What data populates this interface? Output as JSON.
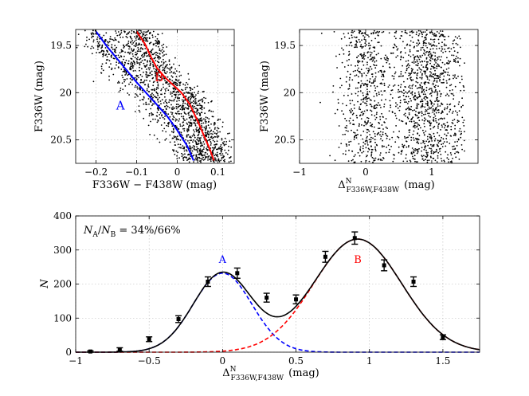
{
  "chart_data": [
    {
      "type": "scatter",
      "panel": "top-left",
      "xlabel": "F336W − F438W  (mag)",
      "ylabel": "F336W  (mag)",
      "xlim": [
        -0.25,
        0.14
      ],
      "ylim": [
        20.75,
        19.33
      ],
      "y_inverted": true,
      "xticks": [
        -0.2,
        -0.1,
        0,
        0.1
      ],
      "xtick_labels": [
        "−0.2",
        "−0.1",
        "0",
        "0.1"
      ],
      "yticks": [
        19.5,
        20,
        20.5
      ],
      "ytick_labels": [
        "19.5",
        "20",
        "20.5"
      ],
      "grid": true,
      "series": [
        {
          "name": "A",
          "color": "#0000ff",
          "x": [
            -0.2,
            -0.175,
            -0.15,
            -0.125,
            -0.1,
            -0.075,
            -0.05,
            -0.025,
            0.0,
            0.025,
            0.04
          ],
          "y": [
            19.35,
            19.5,
            19.63,
            19.76,
            19.89,
            20.01,
            20.13,
            20.25,
            20.4,
            20.57,
            20.72
          ]
        },
        {
          "name": "B",
          "color": "#ff0000",
          "x": [
            -0.1,
            -0.08,
            -0.065,
            -0.05,
            -0.03,
            -0.01,
            0.01,
            0.03,
            0.05,
            0.065,
            0.08,
            0.09
          ],
          "y": [
            19.35,
            19.48,
            19.62,
            19.74,
            19.84,
            19.92,
            20.0,
            20.12,
            20.3,
            20.45,
            20.6,
            20.72
          ]
        }
      ],
      "annotations": [
        {
          "text": "A",
          "color": "#0000ff",
          "x": -0.14,
          "y": 20.18
        },
        {
          "text": "B",
          "color": "#ff0000",
          "x": -0.045,
          "y": 19.88
        }
      ]
    },
    {
      "type": "scatter",
      "panel": "top-right",
      "xlabel": "Δ",
      "xlabel_sup": "N",
      "xlabel_sub": "F336W,F438W",
      "xlabel_unit": "(mag)",
      "ylabel": "F336W  (mag)",
      "xlim": [
        -1,
        1.7
      ],
      "ylim": [
        20.75,
        19.33
      ],
      "y_inverted": true,
      "xticks": [
        -1,
        0,
        1
      ],
      "xtick_labels": [
        "−1",
        "0",
        "1"
      ],
      "yticks": [
        19.5,
        20,
        20.5
      ],
      "ytick_labels": [
        "19.5",
        "20",
        "20.5"
      ],
      "grid": true
    },
    {
      "type": "line",
      "panel": "bottom",
      "ylabel": "N",
      "xlabel": "Δ",
      "xlabel_sup": "N",
      "xlabel_sub": "F336W,F438W",
      "xlabel_unit": "(mag)",
      "xlim": [
        -1,
        1.75
      ],
      "ylim": [
        0,
        400
      ],
      "xticks": [
        -1,
        -0.5,
        0,
        0.5,
        1,
        1.5
      ],
      "xtick_labels": [
        "−1",
        "−0.5",
        "0",
        "0.5",
        "1",
        "1.5"
      ],
      "yticks": [
        0,
        100,
        200,
        300,
        400
      ],
      "ytick_labels": [
        "0",
        "100",
        "200",
        "300",
        "400"
      ],
      "grid": true,
      "annotation": {
        "lhs": "N",
        "lhs_sub1": "A",
        "slash": "/",
        "rhs": "N",
        "rhs_sub": "B",
        "eq": " = 34%/66%"
      },
      "histogram_points": {
        "x": [
          -0.9,
          -0.7,
          -0.5,
          -0.3,
          -0.1,
          0.1,
          0.3,
          0.5,
          0.7,
          0.9,
          1.1,
          1.3,
          1.5
        ],
        "y": [
          2,
          8,
          38,
          97,
          207,
          232,
          160,
          155,
          280,
          335,
          255,
          207,
          44
        ],
        "err": [
          2,
          5,
          7,
          10,
          14,
          15,
          13,
          13,
          16,
          18,
          16,
          14,
          7
        ]
      },
      "components": [
        {
          "name": "A",
          "color": "#0000ff",
          "style": "dashed",
          "amp": 232,
          "mu": 0.0,
          "sigma": 0.2
        },
        {
          "name": "B",
          "color": "#ff0000",
          "style": "dashed",
          "amp": 332,
          "mu": 0.92,
          "sigma": 0.3
        }
      ],
      "total_fit": {
        "color": "#000000",
        "style": "solid"
      },
      "component_labels": [
        {
          "text": "A",
          "color": "#0000ff",
          "x": 0.0,
          "y": 262
        },
        {
          "text": "B",
          "color": "#ff0000",
          "x": 0.92,
          "y": 262
        }
      ]
    }
  ]
}
